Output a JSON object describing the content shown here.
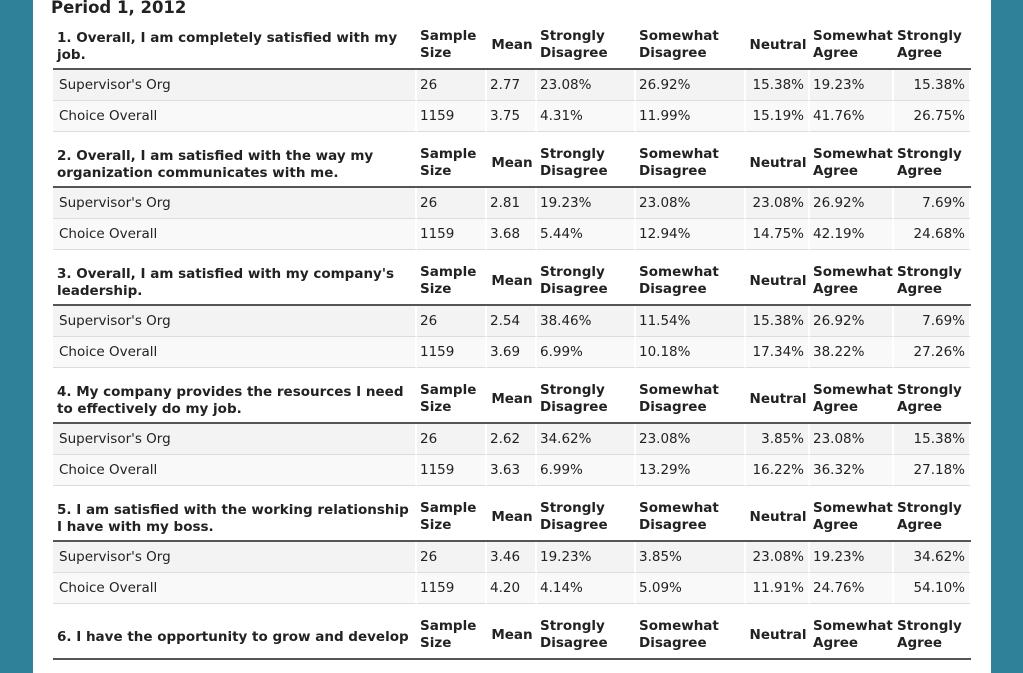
{
  "period_title": "Period 1, 2012",
  "headers": {
    "sample_size": "Sample Size",
    "mean": "Mean",
    "strongly_disagree": "Strongly Disagree",
    "somewhat_disagree": "Somewhat Disagree",
    "neutral": "Neutral",
    "somewhat_agree": "Somewhat Agree",
    "strongly_agree": "Strongly Agree"
  },
  "questions": [
    {
      "text": "1. Overall, I am completely satisfied with my job.",
      "rows": [
        {
          "label": "Supervisor's Org",
          "n": "26",
          "mean": "2.77",
          "sd": "23.08%",
          "swd": "26.92%",
          "neu": "15.38%",
          "swa": "19.23%",
          "sa": "15.38%"
        },
        {
          "label": "Choice Overall",
          "n": "1159",
          "mean": "3.75",
          "sd": "4.31%",
          "swd": "11.99%",
          "neu": "15.19%",
          "swa": "41.76%",
          "sa": "26.75%"
        }
      ]
    },
    {
      "text": "2. Overall, I am satisfied with the way my organization communicates with me.",
      "rows": [
        {
          "label": "Supervisor's Org",
          "n": "26",
          "mean": "2.81",
          "sd": "19.23%",
          "swd": "23.08%",
          "neu": "23.08%",
          "swa": "26.92%",
          "sa": "7.69%"
        },
        {
          "label": "Choice Overall",
          "n": "1159",
          "mean": "3.68",
          "sd": "5.44%",
          "swd": "12.94%",
          "neu": "14.75%",
          "swa": "42.19%",
          "sa": "24.68%"
        }
      ]
    },
    {
      "text": "3. Overall, I am satisfied with my company's leadership.",
      "rows": [
        {
          "label": "Supervisor's Org",
          "n": "26",
          "mean": "2.54",
          "sd": "38.46%",
          "swd": "11.54%",
          "neu": "15.38%",
          "swa": "26.92%",
          "sa": "7.69%"
        },
        {
          "label": "Choice Overall",
          "n": "1159",
          "mean": "3.69",
          "sd": "6.99%",
          "swd": "10.18%",
          "neu": "17.34%",
          "swa": "38.22%",
          "sa": "27.26%"
        }
      ]
    },
    {
      "text": "4. My company provides the resources I need to effectively do my job.",
      "rows": [
        {
          "label": "Supervisor's Org",
          "n": "26",
          "mean": "2.62",
          "sd": "34.62%",
          "swd": "23.08%",
          "neu": "3.85%",
          "swa": "23.08%",
          "sa": "15.38%"
        },
        {
          "label": "Choice Overall",
          "n": "1159",
          "mean": "3.63",
          "sd": "6.99%",
          "swd": "13.29%",
          "neu": "16.22%",
          "swa": "36.32%",
          "sa": "27.18%"
        }
      ]
    },
    {
      "text": "5. I am satisfied with the working relationship I have with my boss.",
      "rows": [
        {
          "label": "Supervisor's Org",
          "n": "26",
          "mean": "3.46",
          "sd": "19.23%",
          "swd": "3.85%",
          "neu": "23.08%",
          "swa": "19.23%",
          "sa": "34.62%"
        },
        {
          "label": "Choice Overall",
          "n": "1159",
          "mean": "4.20",
          "sd": "4.14%",
          "swd": "5.09%",
          "neu": "11.91%",
          "swa": "24.76%",
          "sa": "54.10%"
        }
      ]
    },
    {
      "text": "6. I have the opportunity to grow and develop",
      "rows": []
    }
  ]
}
